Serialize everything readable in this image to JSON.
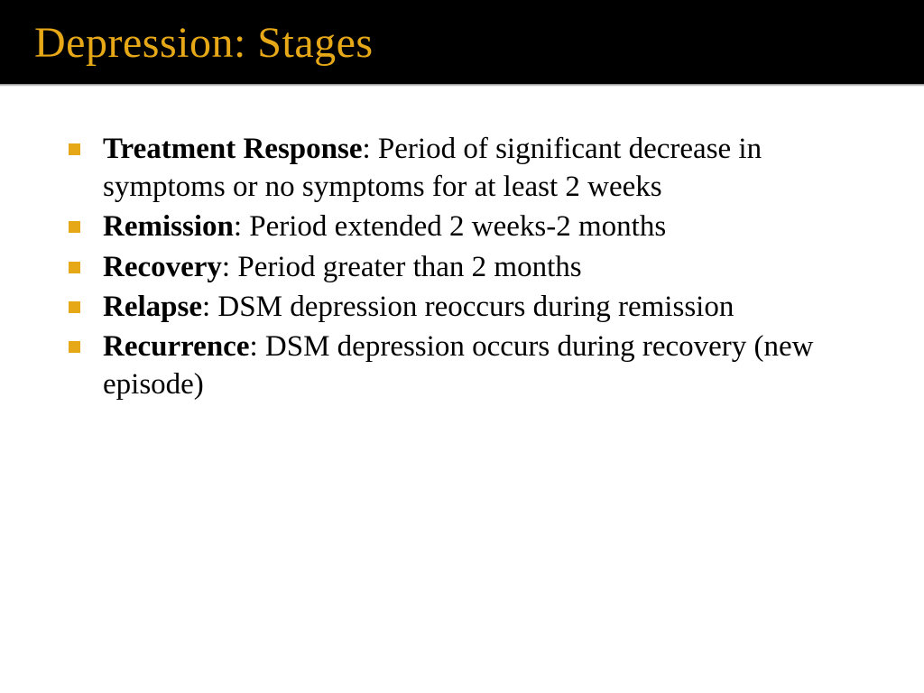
{
  "slide": {
    "title": "Depression: Stages",
    "title_color": "#e6a817",
    "header_bg": "#000000",
    "bullet_color": "#e6a817",
    "body_text_color": "#000000",
    "background_color": "#ffffff",
    "title_fontsize": 48,
    "body_fontsize": 33,
    "items": [
      {
        "term": "Treatment Response",
        "definition": ": Period of significant decrease in symptoms or no symptoms for at least 2 weeks"
      },
      {
        "term": "Remission",
        "definition": ": Period extended 2 weeks-2 months"
      },
      {
        "term": "Recovery",
        "definition": ": Period greater than 2 months"
      },
      {
        "term": "Relapse",
        "definition": ": DSM depression reoccurs during remission"
      },
      {
        "term": "Recurrence",
        "definition": ": DSM depression occurs during recovery (new episode)"
      }
    ]
  }
}
